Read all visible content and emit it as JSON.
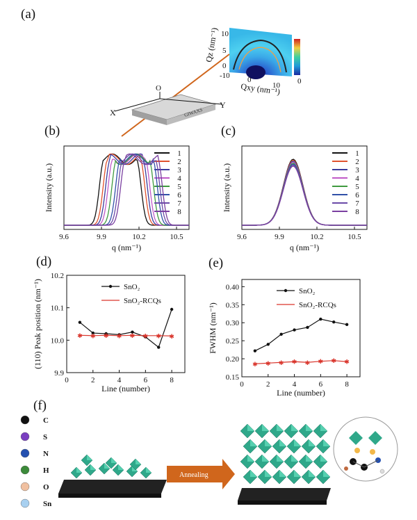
{
  "panels": {
    "a": "(a)",
    "b": "(b)",
    "c": "(c)",
    "d": "(d)",
    "e": "(e)",
    "f": "(f)"
  },
  "giwaxs": {
    "qz_label": "Qz (nm⁻¹)",
    "qxy_label": "Qxy (nm⁻¹)",
    "qz_ticks": [
      "10",
      "5",
      "0"
    ],
    "qxy_ticks": [
      "-10",
      "0",
      "10"
    ],
    "colorbar_zero": "0",
    "axis_x": "X",
    "axis_y": "Y",
    "axis_o": "O",
    "sample": "GIWAXS"
  },
  "chart_data": [
    {
      "id": "b",
      "type": "line",
      "xlabel": "q (nm⁻¹)",
      "ylabel": "Intensity (a.u.)",
      "xlim": [
        9.6,
        10.6
      ],
      "xticks": [
        "9.6",
        "9.9",
        "10.2",
        "10.5"
      ],
      "legend": [
        "1",
        "2",
        "3",
        "4",
        "5",
        "6",
        "7",
        "8"
      ],
      "colors": [
        "#111111",
        "#e0522e",
        "#3b3b9c",
        "#c05ac8",
        "#3f9a3f",
        "#3050a8",
        "#6a4aa8",
        "#7a3fa0"
      ],
      "peak_centers": [
        10.05,
        10.08,
        10.1,
        10.12,
        10.15,
        10.18,
        10.2,
        10.22
      ]
    },
    {
      "id": "c",
      "type": "line",
      "xlabel": "q (nm⁻¹)",
      "ylabel": "Intensity (a.u.)",
      "xlim": [
        9.6,
        10.6
      ],
      "xticks": [
        "9.6",
        "9.9",
        "10.2",
        "10.5"
      ],
      "legend": [
        "1",
        "2",
        "3",
        "4",
        "5",
        "6",
        "7",
        "8"
      ],
      "colors": [
        "#111111",
        "#e0522e",
        "#3b3b9c",
        "#c05ac8",
        "#3f9a3f",
        "#3050a8",
        "#6a4aa8",
        "#7a3fa0"
      ],
      "peak_center": 10.01
    },
    {
      "id": "d",
      "type": "line",
      "xlabel": "Line (number)",
      "ylabel": "(110) Peak position (nm⁻¹)",
      "xlim": [
        0,
        9
      ],
      "ylim": [
        9.9,
        10.2
      ],
      "xticks": [
        0,
        2,
        4,
        6,
        8
      ],
      "yticks": [
        "9.9",
        "10.0",
        "10.1",
        "10.2"
      ],
      "x": [
        1,
        2,
        3,
        4,
        5,
        6,
        7,
        8
      ],
      "series": [
        {
          "name": "SnO₂",
          "color": "#111111",
          "values": [
            10.055,
            10.022,
            10.02,
            10.017,
            10.025,
            10.01,
            9.978,
            10.095
          ]
        },
        {
          "name": "SnO₂-RCQs",
          "color": "#d9342b",
          "values": [
            10.015,
            10.014,
            10.015,
            10.014,
            10.015,
            10.014,
            10.014,
            10.013
          ]
        }
      ]
    },
    {
      "id": "e",
      "type": "line",
      "xlabel": "Line (number)",
      "ylabel": "FWHM (nm⁻¹)",
      "xlim": [
        0,
        9
      ],
      "ylim": [
        0.15,
        0.42
      ],
      "xticks": [
        0,
        2,
        4,
        6,
        8
      ],
      "yticks": [
        "0.15",
        "0.20",
        "0.25",
        "0.30",
        "0.35",
        "0.40"
      ],
      "x": [
        1,
        2,
        3,
        4,
        5,
        6,
        7,
        8
      ],
      "series": [
        {
          "name": "SnO₂",
          "color": "#111111",
          "values": [
            0.222,
            0.24,
            0.268,
            0.28,
            0.287,
            0.31,
            0.302,
            0.295
          ]
        },
        {
          "name": "SnO₂-RCQs",
          "color": "#d9342b",
          "values": [
            0.186,
            0.188,
            0.19,
            0.192,
            0.19,
            0.193,
            0.195,
            0.192
          ]
        }
      ]
    }
  ],
  "schematic": {
    "legend": [
      {
        "label": "C",
        "color": "#111111"
      },
      {
        "label": "S",
        "color": "#7a3fc0"
      },
      {
        "label": "N",
        "color": "#2450b0"
      },
      {
        "label": "H",
        "color": "#3c8a3a"
      },
      {
        "label": "O",
        "color": "#f0c0a0"
      },
      {
        "label": "Sn",
        "color": "#a8d0f0"
      }
    ],
    "arrow_label": "Annealing"
  }
}
